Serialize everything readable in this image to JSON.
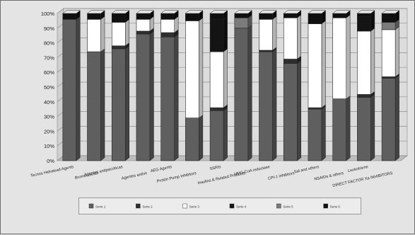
{
  "chart_data": {
    "type": "bar",
    "stacked": true,
    "percent": true,
    "three_d": true,
    "title": "",
    "xlabel": "",
    "ylabel": "",
    "ylim": [
      0,
      100
    ],
    "y_ticks": [
      "0%",
      "10%",
      "20%",
      "30%",
      "40%",
      "50%",
      "60%",
      "70%",
      "80%",
      "90%",
      "100%"
    ],
    "grid": true,
    "legend_position": "bottom",
    "categories": [
      "Tecnos Hidratead Agents",
      "Bromocolestil",
      "Agentes antipsicóticas",
      "Agentes antivir",
      "AEG Agents",
      "Protón Pump Inhibitors",
      "SSRIs",
      "Insulins & Related Products",
      "HMG-CoA reductase",
      "CPI-1 inhibitors",
      "Sal and others",
      "NSAIDs & others",
      "Leukotriene",
      "DIRECT FACTOR Xa INHIBITORS"
    ],
    "series": [
      {
        "values": [
          96,
          74,
          76,
          86,
          84,
          29,
          34,
          90,
          74,
          66,
          35,
          42,
          43,
          56
        ]
      },
      {
        "values": [
          0,
          0,
          2,
          2,
          3,
          0,
          2,
          0,
          1,
          3,
          1,
          0,
          2,
          1
        ]
      },
      {
        "values": [
          0,
          22,
          16,
          8,
          9,
          66,
          38,
          0,
          21,
          28,
          57,
          55,
          43,
          32
        ]
      },
      {
        "values": [
          0,
          0,
          0,
          0,
          0,
          0,
          22,
          0,
          0,
          0,
          0,
          0,
          10,
          0
        ]
      },
      {
        "values": [
          0,
          0,
          0,
          0,
          0,
          0,
          0,
          7,
          0,
          0,
          0,
          0,
          0,
          5
        ]
      },
      {
        "values": [
          4,
          4,
          6,
          4,
          4,
          5,
          4,
          3,
          4,
          3,
          7,
          3,
          2,
          6
        ]
      }
    ],
    "colors": [
      "#5f5f5f",
      "#2e2e2e",
      "#ffffff",
      "#141414",
      "#7b7b7b",
      "#101010"
    ],
    "legend_labels": [
      "Serie 1",
      "Serie 2",
      "Serie 3",
      "Serie 4",
      "Serie 5",
      "Serie 6"
    ]
  }
}
